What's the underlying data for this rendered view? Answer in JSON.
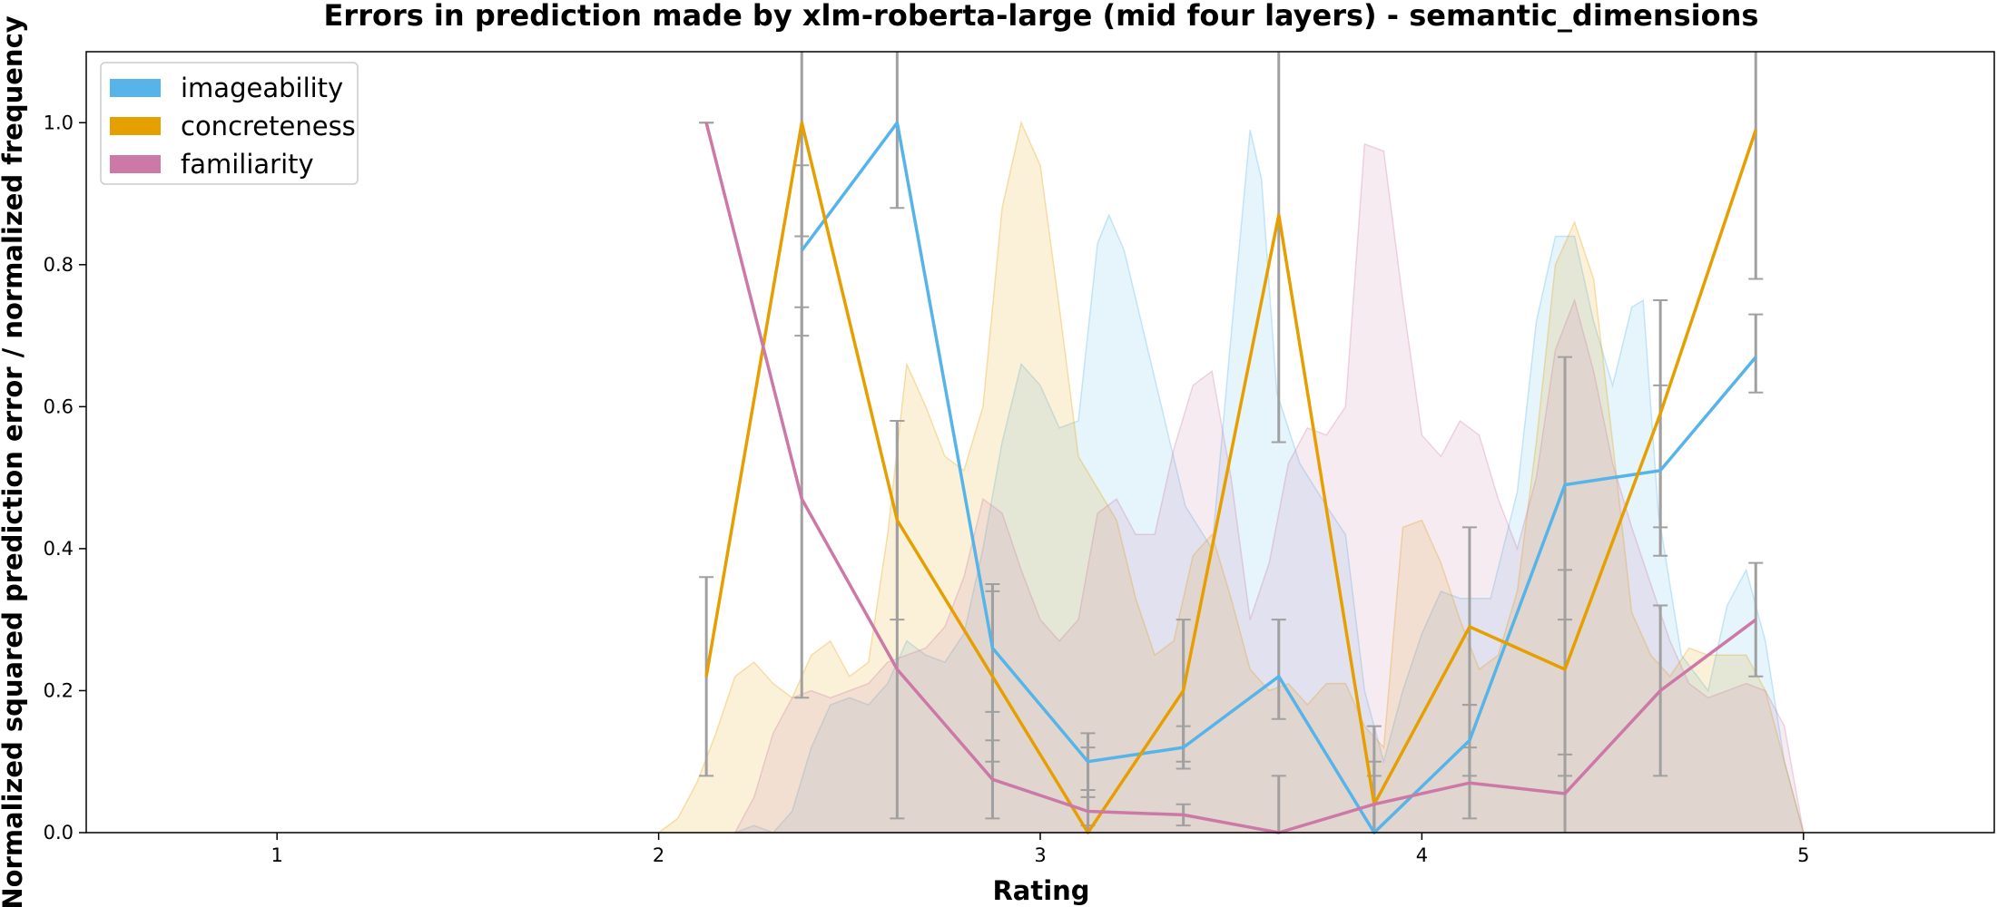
{
  "chart_data": {
    "type": "line",
    "title": "Errors in prediction made by xlm-roberta-large (mid four layers) - semantic_dimensions",
    "xlabel": "Rating",
    "ylabel": "Normalized squared prediction error / normalized frequency",
    "xlim": [
      0.5,
      5.5
    ],
    "ylim": [
      0,
      1.1
    ],
    "x_ticks": [
      1,
      2,
      3,
      4,
      5
    ],
    "y_ticks": [
      0.0,
      0.2,
      0.4,
      0.6,
      0.8,
      1.0
    ],
    "x_tick_labels": [
      "1",
      "2",
      "3",
      "4",
      "5"
    ],
    "y_tick_labels": [
      "0.0",
      "0.2",
      "0.4",
      "0.6",
      "0.8",
      "1.0"
    ],
    "legend_position": "top-left",
    "grid": false,
    "series": [
      {
        "name": "imageability",
        "color": "#56b4e9",
        "x": [
          2.375,
          2.625,
          2.875,
          3.125,
          3.375,
          3.625,
          3.875,
          4.125,
          4.375,
          4.625,
          4.875
        ],
        "y": [
          0.82,
          1.0,
          0.26,
          0.1,
          0.12,
          0.22,
          0.0,
          0.13,
          0.49,
          0.51,
          0.67
        ],
        "err_low": [
          0.7,
          0.88,
          0.17,
          0.06,
          0.09,
          0.16,
          0.0,
          0.08,
          0.3,
          0.39,
          0.62
        ],
        "err_high": [
          0.94,
          1.1,
          0.35,
          0.14,
          0.15,
          0.3,
          0.15,
          0.18,
          0.67,
          0.63,
          0.73
        ],
        "density": [
          [
            2.2,
            0.0
          ],
          [
            2.25,
            0.01
          ],
          [
            2.3,
            0.0
          ],
          [
            2.35,
            0.03
          ],
          [
            2.4,
            0.12
          ],
          [
            2.45,
            0.18
          ],
          [
            2.5,
            0.19
          ],
          [
            2.55,
            0.18
          ],
          [
            2.6,
            0.21
          ],
          [
            2.65,
            0.27
          ],
          [
            2.7,
            0.25
          ],
          [
            2.75,
            0.24
          ],
          [
            2.8,
            0.28
          ],
          [
            2.85,
            0.4
          ],
          [
            2.9,
            0.55
          ],
          [
            2.95,
            0.66
          ],
          [
            3.0,
            0.63
          ],
          [
            3.05,
            0.57
          ],
          [
            3.1,
            0.58
          ],
          [
            3.15,
            0.83
          ],
          [
            3.18,
            0.87
          ],
          [
            3.22,
            0.82
          ],
          [
            3.3,
            0.64
          ],
          [
            3.38,
            0.46
          ],
          [
            3.45,
            0.4
          ],
          [
            3.5,
            0.7
          ],
          [
            3.55,
            0.99
          ],
          [
            3.58,
            0.92
          ],
          [
            3.62,
            0.62
          ],
          [
            3.68,
            0.52
          ],
          [
            3.75,
            0.46
          ],
          [
            3.8,
            0.42
          ],
          [
            3.85,
            0.2
          ],
          [
            3.9,
            0.1
          ],
          [
            3.95,
            0.2
          ],
          [
            4.0,
            0.28
          ],
          [
            4.05,
            0.34
          ],
          [
            4.1,
            0.33
          ],
          [
            4.18,
            0.33
          ],
          [
            4.25,
            0.48
          ],
          [
            4.3,
            0.72
          ],
          [
            4.35,
            0.84
          ],
          [
            4.4,
            0.84
          ],
          [
            4.45,
            0.72
          ],
          [
            4.5,
            0.63
          ],
          [
            4.55,
            0.74
          ],
          [
            4.58,
            0.75
          ],
          [
            4.62,
            0.45
          ],
          [
            4.68,
            0.25
          ],
          [
            4.75,
            0.2
          ],
          [
            4.8,
            0.32
          ],
          [
            4.85,
            0.37
          ],
          [
            4.9,
            0.27
          ],
          [
            4.95,
            0.1
          ],
          [
            5.0,
            0.0
          ]
        ]
      },
      {
        "name": "concreteness",
        "color": "#e69f00",
        "x": [
          2.125,
          2.375,
          2.625,
          2.875,
          3.125,
          3.375,
          3.625,
          3.875,
          4.125,
          4.375,
          4.625,
          4.875
        ],
        "y": [
          0.22,
          1.0,
          0.44,
          0.22,
          0.0,
          0.2,
          0.87,
          0.04,
          0.29,
          0.23,
          0.59,
          0.99
        ],
        "err_low": [
          0.08,
          0.84,
          0.3,
          0.1,
          0.0,
          0.1,
          0.55,
          0.0,
          0.18,
          0.08,
          0.43,
          0.78
        ],
        "err_high": [
          0.36,
          1.1,
          0.58,
          0.34,
          0.12,
          0.3,
          1.1,
          0.1,
          0.43,
          0.37,
          0.75,
          1.1
        ],
        "density": [
          [
            2.0,
            0.0
          ],
          [
            2.05,
            0.02
          ],
          [
            2.1,
            0.07
          ],
          [
            2.15,
            0.14
          ],
          [
            2.2,
            0.22
          ],
          [
            2.25,
            0.24
          ],
          [
            2.3,
            0.21
          ],
          [
            2.35,
            0.19
          ],
          [
            2.4,
            0.25
          ],
          [
            2.45,
            0.27
          ],
          [
            2.5,
            0.22
          ],
          [
            2.55,
            0.24
          ],
          [
            2.6,
            0.42
          ],
          [
            2.65,
            0.66
          ],
          [
            2.7,
            0.6
          ],
          [
            2.75,
            0.53
          ],
          [
            2.8,
            0.51
          ],
          [
            2.85,
            0.6
          ],
          [
            2.9,
            0.88
          ],
          [
            2.95,
            1.0
          ],
          [
            3.0,
            0.94
          ],
          [
            3.05,
            0.74
          ],
          [
            3.1,
            0.53
          ],
          [
            3.2,
            0.44
          ],
          [
            3.25,
            0.33
          ],
          [
            3.3,
            0.25
          ],
          [
            3.35,
            0.27
          ],
          [
            3.4,
            0.39
          ],
          [
            3.45,
            0.42
          ],
          [
            3.5,
            0.33
          ],
          [
            3.55,
            0.23
          ],
          [
            3.6,
            0.2
          ],
          [
            3.65,
            0.21
          ],
          [
            3.7,
            0.18
          ],
          [
            3.75,
            0.21
          ],
          [
            3.8,
            0.21
          ],
          [
            3.85,
            0.15
          ],
          [
            3.9,
            0.12
          ],
          [
            3.95,
            0.43
          ],
          [
            4.0,
            0.44
          ],
          [
            4.05,
            0.38
          ],
          [
            4.1,
            0.3
          ],
          [
            4.15,
            0.23
          ],
          [
            4.2,
            0.25
          ],
          [
            4.25,
            0.34
          ],
          [
            4.3,
            0.55
          ],
          [
            4.35,
            0.8
          ],
          [
            4.4,
            0.86
          ],
          [
            4.45,
            0.78
          ],
          [
            4.5,
            0.55
          ],
          [
            4.55,
            0.31
          ],
          [
            4.6,
            0.25
          ],
          [
            4.65,
            0.22
          ],
          [
            4.7,
            0.26
          ],
          [
            4.75,
            0.25
          ],
          [
            4.8,
            0.25
          ],
          [
            4.85,
            0.25
          ],
          [
            4.9,
            0.2
          ],
          [
            4.95,
            0.1
          ],
          [
            5.0,
            0.0
          ]
        ]
      },
      {
        "name": "familiarity",
        "color": "#cc79a7",
        "x": [
          2.125,
          2.375,
          2.625,
          2.875,
          3.125,
          3.375,
          3.625,
          3.875,
          4.125,
          4.375,
          4.625,
          4.875
        ],
        "y": [
          1.0,
          0.47,
          0.23,
          0.075,
          0.03,
          0.025,
          0.0,
          0.04,
          0.07,
          0.055,
          0.2,
          0.3
        ],
        "err_low": [
          1.0,
          0.19,
          0.02,
          0.02,
          0.01,
          0.01,
          0.0,
          0.0,
          0.02,
          0.0,
          0.08,
          0.22
        ],
        "err_high": [
          1.0,
          0.74,
          0.58,
          0.13,
          0.05,
          0.04,
          0.08,
          0.08,
          0.12,
          0.11,
          0.32,
          0.38
        ],
        "density": [
          [
            2.2,
            0.0
          ],
          [
            2.25,
            0.05
          ],
          [
            2.3,
            0.14
          ],
          [
            2.35,
            0.19
          ],
          [
            2.4,
            0.2
          ],
          [
            2.45,
            0.19
          ],
          [
            2.5,
            0.2
          ],
          [
            2.55,
            0.21
          ],
          [
            2.6,
            0.24
          ],
          [
            2.65,
            0.25
          ],
          [
            2.7,
            0.26
          ],
          [
            2.75,
            0.29
          ],
          [
            2.8,
            0.36
          ],
          [
            2.85,
            0.47
          ],
          [
            2.9,
            0.45
          ],
          [
            2.95,
            0.37
          ],
          [
            3.0,
            0.3
          ],
          [
            3.05,
            0.27
          ],
          [
            3.1,
            0.3
          ],
          [
            3.15,
            0.45
          ],
          [
            3.2,
            0.47
          ],
          [
            3.25,
            0.42
          ],
          [
            3.3,
            0.42
          ],
          [
            3.35,
            0.54
          ],
          [
            3.4,
            0.63
          ],
          [
            3.45,
            0.65
          ],
          [
            3.5,
            0.5
          ],
          [
            3.55,
            0.3
          ],
          [
            3.6,
            0.38
          ],
          [
            3.65,
            0.52
          ],
          [
            3.7,
            0.57
          ],
          [
            3.75,
            0.56
          ],
          [
            3.8,
            0.6
          ],
          [
            3.85,
            0.97
          ],
          [
            3.9,
            0.96
          ],
          [
            3.95,
            0.75
          ],
          [
            4.0,
            0.56
          ],
          [
            4.05,
            0.53
          ],
          [
            4.1,
            0.58
          ],
          [
            4.15,
            0.56
          ],
          [
            4.2,
            0.47
          ],
          [
            4.25,
            0.4
          ],
          [
            4.3,
            0.5
          ],
          [
            4.35,
            0.68
          ],
          [
            4.4,
            0.75
          ],
          [
            4.45,
            0.65
          ],
          [
            4.5,
            0.52
          ],
          [
            4.55,
            0.43
          ],
          [
            4.6,
            0.35
          ],
          [
            4.65,
            0.27
          ],
          [
            4.7,
            0.21
          ],
          [
            4.75,
            0.19
          ],
          [
            4.8,
            0.2
          ],
          [
            4.85,
            0.21
          ],
          [
            4.9,
            0.2
          ],
          [
            4.95,
            0.15
          ],
          [
            5.0,
            0.0
          ]
        ]
      }
    ]
  }
}
